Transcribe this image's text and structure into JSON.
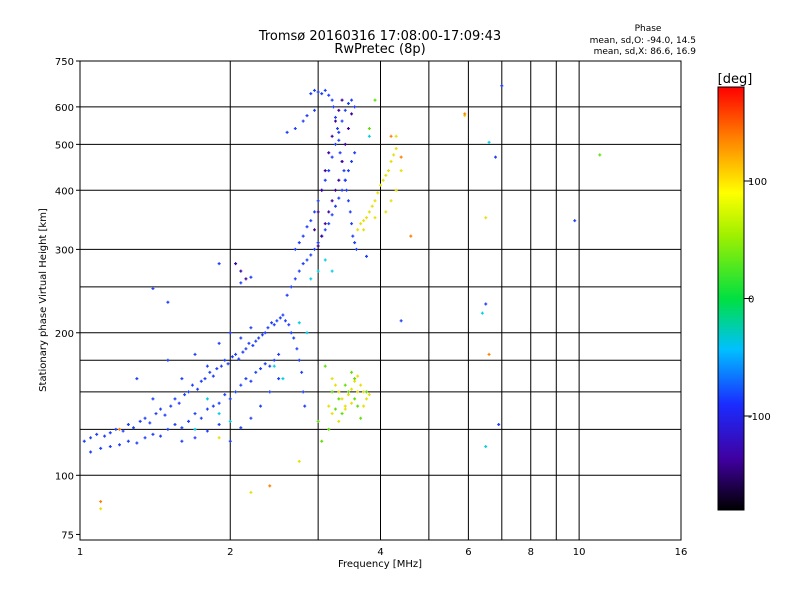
{
  "chart_data": {
    "type": "scatter",
    "title": "Tromsø 20160316 17:08:00-17:09:43",
    "subtitle": "RwPretec (8p)",
    "xlabel": "Frequency [MHz]",
    "ylabel": "Stationary phase Virtual Height [km]",
    "x_scale": "log",
    "y_scale": "log",
    "xlim": [
      1,
      16
    ],
    "ylim": [
      73,
      750
    ],
    "x_ticks": [
      1,
      2,
      4,
      6,
      8,
      10,
      16
    ],
    "x_minor_ticks": [
      3,
      5,
      7,
      9
    ],
    "y_ticks": [
      75,
      100,
      200,
      300,
      400,
      500,
      600,
      750
    ],
    "y_gridlines": [
      100,
      125,
      150,
      175,
      200,
      250,
      300,
      400,
      500,
      600
    ],
    "grid": true,
    "phase_legend": {
      "title": "Phase",
      "line_o": "mean, sd,O: -94.0, 14.5",
      "line_x": "mean, sd,X: 86.6, 16.9"
    },
    "colorbar": {
      "label": "[deg]",
      "range": [
        -180,
        180
      ],
      "ticks": [
        "100",
        "0",
        "-100"
      ],
      "tick_values": [
        100,
        0,
        -100
      ]
    },
    "series": [
      {
        "mode": "O",
        "color": "#2040ff",
        "points": [
          [
            1.02,
            118
          ],
          [
            1.05,
            120
          ],
          [
            1.08,
            122
          ],
          [
            1.12,
            121
          ],
          [
            1.15,
            123
          ],
          [
            1.18,
            125
          ],
          [
            1.22,
            124
          ],
          [
            1.25,
            128
          ],
          [
            1.28,
            126
          ],
          [
            1.32,
            130
          ],
          [
            1.35,
            132
          ],
          [
            1.38,
            129
          ],
          [
            1.42,
            135
          ],
          [
            1.45,
            138
          ],
          [
            1.48,
            134
          ],
          [
            1.52,
            140
          ],
          [
            1.55,
            145
          ],
          [
            1.58,
            142
          ],
          [
            1.62,
            148
          ],
          [
            1.65,
            150
          ],
          [
            1.68,
            155
          ],
          [
            1.72,
            152
          ],
          [
            1.75,
            158
          ],
          [
            1.78,
            160
          ],
          [
            1.82,
            165
          ],
          [
            1.85,
            162
          ],
          [
            1.88,
            168
          ],
          [
            1.92,
            170
          ],
          [
            1.95,
            175
          ],
          [
            1.98,
            172
          ],
          [
            2.02,
            178
          ],
          [
            2.05,
            180
          ],
          [
            2.08,
            176
          ],
          [
            2.12,
            182
          ],
          [
            2.15,
            185
          ],
          [
            2.18,
            190
          ],
          [
            2.22,
            188
          ],
          [
            2.25,
            192
          ],
          [
            2.28,
            195
          ],
          [
            2.32,
            198
          ],
          [
            2.35,
            200
          ],
          [
            2.38,
            205
          ],
          [
            2.42,
            210
          ],
          [
            2.45,
            208
          ],
          [
            2.48,
            212
          ],
          [
            2.52,
            215
          ],
          [
            2.55,
            218
          ],
          [
            2.58,
            212
          ],
          [
            2.62,
            208
          ],
          [
            2.65,
            200
          ],
          [
            2.68,
            195
          ],
          [
            2.72,
            185
          ],
          [
            2.75,
            175
          ],
          [
            2.78,
            165
          ],
          [
            2.8,
            150
          ],
          [
            2.82,
            140
          ],
          [
            1.05,
            112
          ],
          [
            1.1,
            114
          ],
          [
            1.15,
            115
          ],
          [
            1.2,
            116
          ],
          [
            1.25,
            118
          ],
          [
            1.3,
            117
          ],
          [
            1.35,
            120
          ],
          [
            1.4,
            122
          ],
          [
            1.45,
            121
          ],
          [
            1.5,
            125
          ],
          [
            1.55,
            128
          ],
          [
            1.6,
            126
          ],
          [
            1.65,
            130
          ],
          [
            1.7,
            135
          ],
          [
            1.75,
            132
          ],
          [
            1.8,
            138
          ],
          [
            1.85,
            140
          ],
          [
            1.9,
            142
          ],
          [
            1.95,
            148
          ],
          [
            2.0,
            145
          ],
          [
            2.05,
            150
          ],
          [
            2.1,
            155
          ],
          [
            2.15,
            160
          ],
          [
            2.2,
            158
          ],
          [
            2.25,
            165
          ],
          [
            2.3,
            168
          ],
          [
            2.35,
            172
          ],
          [
            2.4,
            170
          ],
          [
            2.45,
            175
          ],
          [
            2.5,
            180
          ],
          [
            1.6,
            118
          ],
          [
            1.7,
            120
          ],
          [
            1.8,
            124
          ],
          [
            1.9,
            128
          ],
          [
            2.0,
            118
          ],
          [
            2.1,
            126
          ],
          [
            2.2,
            132
          ],
          [
            2.3,
            140
          ],
          [
            2.4,
            150
          ],
          [
            2.5,
            160
          ],
          [
            1.3,
            160
          ],
          [
            1.4,
            145
          ],
          [
            1.5,
            175
          ],
          [
            1.6,
            160
          ],
          [
            1.7,
            180
          ],
          [
            1.8,
            170
          ],
          [
            1.9,
            190
          ],
          [
            2.0,
            200
          ],
          [
            2.1,
            195
          ],
          [
            2.2,
            205
          ],
          [
            2.6,
            240
          ],
          [
            2.65,
            250
          ],
          [
            2.7,
            260
          ],
          [
            2.75,
            270
          ],
          [
            2.8,
            280
          ],
          [
            2.85,
            285
          ],
          [
            2.9,
            292
          ],
          [
            2.95,
            300
          ],
          [
            3.0,
            310
          ],
          [
            3.05,
            320
          ],
          [
            3.1,
            330
          ],
          [
            3.15,
            340
          ],
          [
            3.2,
            355
          ],
          [
            3.25,
            370
          ],
          [
            3.3,
            385
          ],
          [
            3.35,
            400
          ],
          [
            3.4,
            420
          ],
          [
            3.45,
            440
          ],
          [
            3.5,
            460
          ],
          [
            3.55,
            480
          ],
          [
            2.7,
            300
          ],
          [
            2.75,
            310
          ],
          [
            2.8,
            320
          ],
          [
            2.85,
            335
          ],
          [
            2.9,
            345
          ],
          [
            2.95,
            360
          ],
          [
            3.0,
            380
          ],
          [
            3.05,
            400
          ],
          [
            3.1,
            420
          ],
          [
            3.15,
            440
          ],
          [
            3.2,
            470
          ],
          [
            3.25,
            500
          ],
          [
            3.3,
            530
          ],
          [
            3.35,
            560
          ],
          [
            3.4,
            590
          ],
          [
            3.45,
            610
          ],
          [
            3.5,
            620
          ],
          [
            3.55,
            600
          ],
          [
            2.9,
            640
          ],
          [
            2.95,
            650
          ],
          [
            3.0,
            645
          ],
          [
            3.05,
            640
          ],
          [
            3.1,
            650
          ],
          [
            3.15,
            635
          ],
          [
            3.2,
            620
          ],
          [
            3.22,
            600
          ],
          [
            3.25,
            570
          ],
          [
            3.28,
            540
          ],
          [
            3.3,
            510
          ],
          [
            3.32,
            480
          ],
          [
            3.35,
            460
          ],
          [
            3.38,
            440
          ],
          [
            3.4,
            420
          ],
          [
            3.42,
            400
          ],
          [
            3.45,
            380
          ],
          [
            3.48,
            360
          ],
          [
            3.5,
            340
          ],
          [
            3.52,
            320
          ],
          [
            3.55,
            310
          ],
          [
            3.58,
            300
          ],
          [
            2.6,
            530
          ],
          [
            2.7,
            540
          ],
          [
            2.8,
            560
          ],
          [
            2.85,
            575
          ],
          [
            2.95,
            590
          ],
          [
            1.5,
            232
          ],
          [
            1.4,
            248
          ],
          [
            1.9,
            280
          ],
          [
            2.1,
            255
          ],
          [
            2.2,
            262
          ],
          [
            3.75,
            290
          ],
          [
            4.4,
            212
          ],
          [
            6.5,
            230
          ],
          [
            6.8,
            470
          ],
          [
            7.0,
            665
          ],
          [
            9.8,
            345
          ],
          [
            6.9,
            128
          ]
        ]
      },
      {
        "mode": "X",
        "color": "#e8e000",
        "points": [
          [
            3.6,
            330
          ],
          [
            3.65,
            340
          ],
          [
            3.7,
            345
          ],
          [
            3.75,
            350
          ],
          [
            3.8,
            360
          ],
          [
            3.85,
            370
          ],
          [
            3.9,
            380
          ],
          [
            3.95,
            395
          ],
          [
            4.0,
            410
          ],
          [
            4.05,
            420
          ],
          [
            4.1,
            430
          ],
          [
            4.15,
            440
          ],
          [
            4.2,
            460
          ],
          [
            4.25,
            475
          ],
          [
            4.3,
            490
          ],
          [
            4.2,
            380
          ],
          [
            4.3,
            400
          ],
          [
            4.1,
            360
          ],
          [
            3.9,
            350
          ],
          [
            3.7,
            330
          ],
          [
            3.2,
            160
          ],
          [
            3.25,
            155
          ],
          [
            3.3,
            150
          ],
          [
            3.35,
            145
          ],
          [
            3.4,
            140
          ],
          [
            3.45,
            148
          ],
          [
            3.5,
            152
          ],
          [
            3.55,
            158
          ],
          [
            3.6,
            162
          ],
          [
            3.65,
            155
          ],
          [
            3.7,
            150
          ],
          [
            3.75,
            145
          ],
          [
            3.8,
            148
          ],
          [
            3.15,
            140
          ],
          [
            3.2,
            135
          ],
          [
            3.3,
            130
          ],
          [
            3.4,
            138
          ],
          [
            3.5,
            142
          ],
          [
            3.6,
            150
          ],
          [
            3.7,
            140
          ],
          [
            4.4,
            440
          ],
          [
            4.3,
            520
          ],
          [
            1.9,
            120
          ],
          [
            2.2,
            92
          ],
          [
            2.75,
            107
          ],
          [
            5.9,
            575
          ],
          [
            1.1,
            85
          ],
          [
            6.5,
            350
          ]
        ]
      },
      {
        "mode": "X",
        "color": "#60e000",
        "points": [
          [
            3.1,
            170
          ],
          [
            3.2,
            150
          ],
          [
            3.3,
            145
          ],
          [
            3.4,
            155
          ],
          [
            3.5,
            165
          ],
          [
            3.6,
            140
          ],
          [
            3.25,
            138
          ],
          [
            3.45,
            150
          ],
          [
            3.55,
            160
          ],
          [
            3.0,
            130
          ],
          [
            3.05,
            118
          ],
          [
            3.15,
            125
          ],
          [
            3.35,
            135
          ],
          [
            3.55,
            145
          ],
          [
            3.65,
            132
          ],
          [
            3.75,
            150
          ],
          [
            11.0,
            475
          ],
          [
            3.9,
            620
          ],
          [
            3.8,
            540
          ]
        ]
      },
      {
        "mode": "X",
        "color": "#00d0e0",
        "points": [
          [
            1.8,
            145
          ],
          [
            1.9,
            135
          ],
          [
            2.0,
            130
          ],
          [
            1.7,
            125
          ],
          [
            2.45,
            170
          ],
          [
            2.55,
            160
          ],
          [
            2.9,
            260
          ],
          [
            3.0,
            270
          ],
          [
            3.1,
            285
          ],
          [
            3.2,
            270
          ],
          [
            2.85,
            200
          ],
          [
            2.75,
            210
          ],
          [
            3.8,
            520
          ],
          [
            6.6,
            505
          ],
          [
            6.4,
            220
          ],
          [
            6.5,
            115
          ]
        ]
      },
      {
        "mode": "O",
        "color": "#4000a0",
        "points": [
          [
            3.15,
            480
          ],
          [
            3.2,
            520
          ],
          [
            3.25,
            560
          ],
          [
            3.3,
            590
          ],
          [
            3.35,
            620
          ],
          [
            3.1,
            440
          ],
          [
            3.05,
            400
          ],
          [
            3.0,
            360
          ],
          [
            2.95,
            330
          ],
          [
            3.4,
            500
          ],
          [
            3.45,
            540
          ],
          [
            3.5,
            580
          ],
          [
            3.35,
            460
          ],
          [
            3.3,
            420
          ],
          [
            3.25,
            400
          ],
          [
            3.2,
            380
          ],
          [
            3.15,
            360
          ],
          [
            3.1,
            340
          ],
          [
            3.05,
            320
          ],
          [
            3.0,
            305
          ],
          [
            2.1,
            270
          ],
          [
            2.05,
            280
          ],
          [
            2.15,
            260
          ]
        ]
      },
      {
        "mode": "X",
        "color": "#ff8000",
        "points": [
          [
            4.2,
            520
          ],
          [
            4.4,
            470
          ],
          [
            2.4,
            95
          ],
          [
            1.1,
            88
          ],
          [
            5.9,
            580
          ],
          [
            6.6,
            180
          ],
          [
            4.6,
            320
          ],
          [
            1.2,
            125
          ]
        ]
      }
    ]
  }
}
